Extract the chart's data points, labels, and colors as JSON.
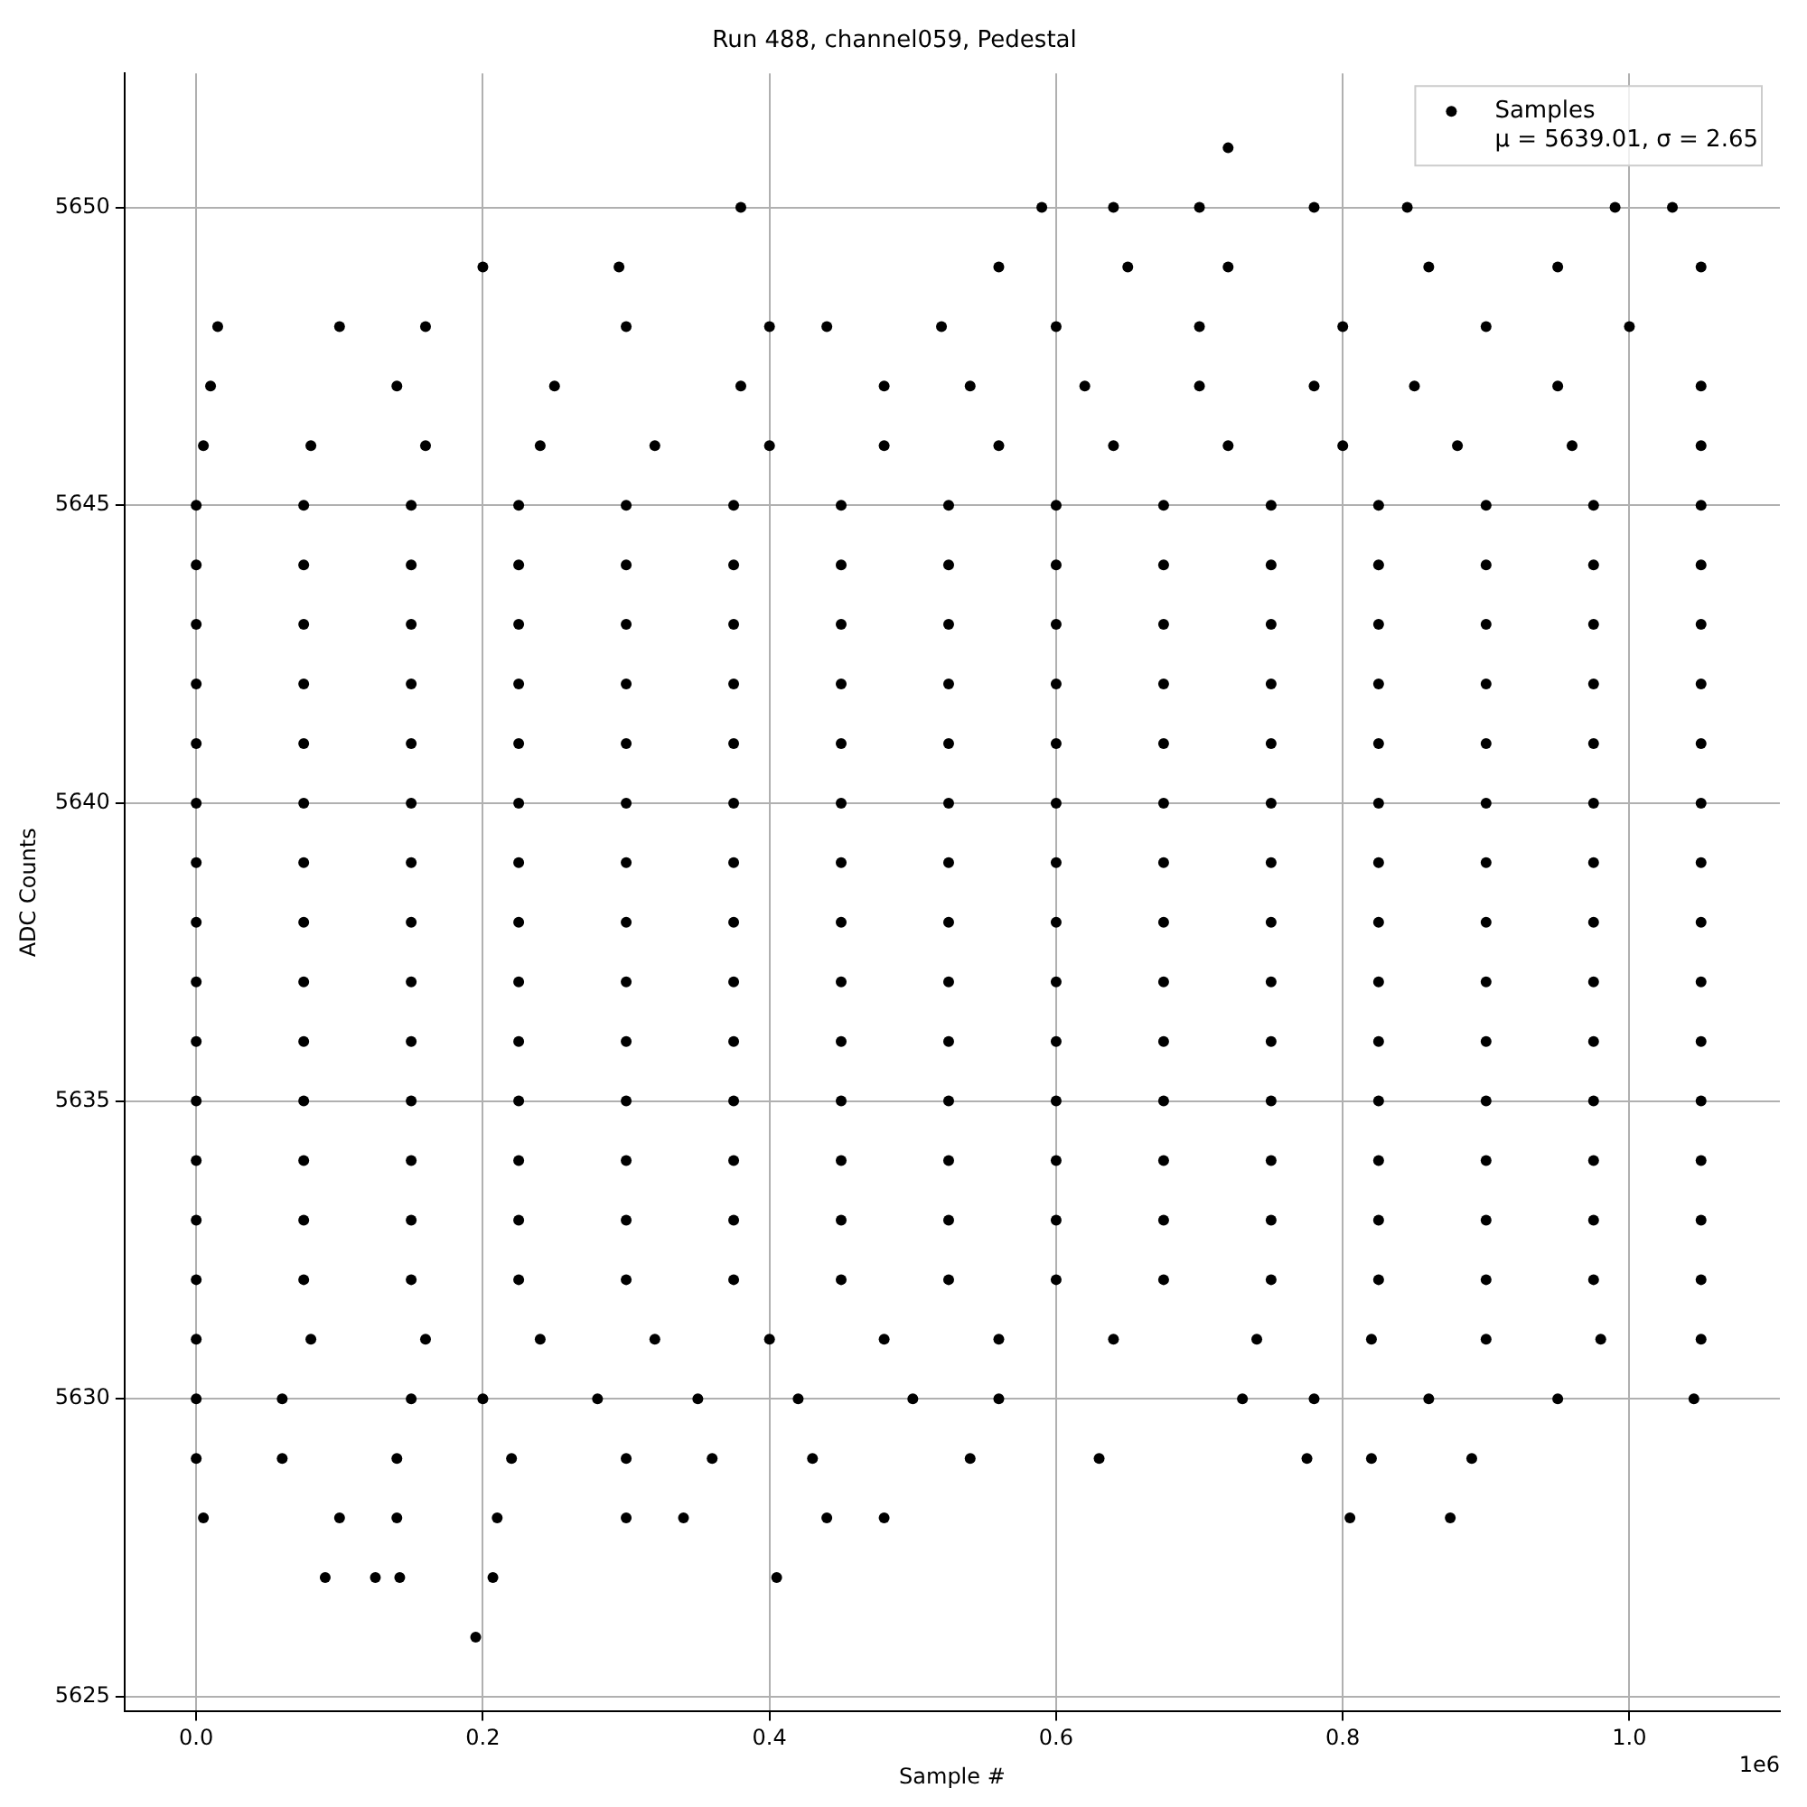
{
  "chart_data": {
    "type": "scatter",
    "title": "Run 488, channel059, Pedestal",
    "xlabel": "Sample #",
    "ylabel": "ADC Counts",
    "annotations": [
      "1e6"
    ],
    "xlim": [
      -0.05,
      1.105
    ],
    "xticks": [
      {
        "value": 0,
        "label": "0.0"
      },
      0.2,
      0.4,
      0.6,
      0.8,
      {
        "value": 1,
        "label": "1.0"
      }
    ],
    "ylim": [
      5624.75,
      5652.25
    ],
    "yticks": [
      5625,
      5630,
      5635,
      5640,
      5645,
      5650
    ],
    "grid": true,
    "legend": "top right",
    "marker": "circle",
    "series": [
      {
        "name": "Samples\nμ = 5639.01, σ = 2.65",
        "color": "#000000",
        "x": [
          0,
          0.075,
          0.15,
          0.225,
          0.3,
          0.375,
          0.45,
          0.525,
          0.6,
          0.675,
          0.75,
          0.825,
          0.9,
          0.975,
          1.05,
          0,
          0.075,
          0.15,
          0.225,
          0.3,
          0.375,
          0.45,
          0.525,
          0.6,
          0.675,
          0.75,
          0.825,
          0.9,
          0.975,
          1.05,
          0,
          0.075,
          0.15,
          0.225,
          0.3,
          0.375,
          0.45,
          0.525,
          0.6,
          0.675,
          0.75,
          0.825,
          0.9,
          0.975,
          1.05,
          0,
          0.075,
          0.15,
          0.225,
          0.3,
          0.375,
          0.45,
          0.525,
          0.6,
          0.675,
          0.75,
          0.825,
          0.9,
          0.975,
          1.05,
          0,
          0.075,
          0.15,
          0.225,
          0.3,
          0.375,
          0.45,
          0.525,
          0.6,
          0.675,
          0.75,
          0.825,
          0.9,
          0.975,
          1.05,
          0,
          0.075,
          0.15,
          0.225,
          0.3,
          0.375,
          0.45,
          0.525,
          0.6,
          0.675,
          0.75,
          0.825,
          0.9,
          0.975,
          1.05,
          0,
          0.075,
          0.15,
          0.225,
          0.3,
          0.375,
          0.45,
          0.525,
          0.6,
          0.675,
          0.75,
          0.825,
          0.9,
          0.975,
          1.05,
          0,
          0.075,
          0.15,
          0.225,
          0.3,
          0.375,
          0.45,
          0.525,
          0.6,
          0.675,
          0.75,
          0.825,
          0.9,
          0.975,
          1.05,
          0,
          0.075,
          0.15,
          0.225,
          0.3,
          0.375,
          0.45,
          0.525,
          0.6,
          0.675,
          0.75,
          0.825,
          0.9,
          0.975,
          1.05,
          0,
          0.075,
          0.15,
          0.225,
          0.3,
          0.375,
          0.45,
          0.525,
          0.6,
          0.675,
          0.75,
          0.825,
          0.9,
          0.975,
          1.05,
          0,
          0.075,
          0.15,
          0.225,
          0.3,
          0.375,
          0.45,
          0.525,
          0.6,
          0.675,
          0.75,
          0.825,
          0.9,
          0.975,
          1.05,
          0,
          0.075,
          0.15,
          0.225,
          0.3,
          0.375,
          0.45,
          0.525,
          0.6,
          0.675,
          0.75,
          0.825,
          0.9,
          0.975,
          1.05,
          0,
          0.075,
          0.15,
          0.225,
          0.3,
          0.375,
          0.45,
          0.525,
          0.6,
          0.675,
          0.75,
          0.825,
          0.9,
          0.975,
          1.05,
          0,
          0.075,
          0.15,
          0.225,
          0.3,
          0.375,
          0.45,
          0.525,
          0.6,
          0.675,
          0.75,
          0.825,
          0.9,
          0.975,
          1.05,
          0.72,
          0.38,
          0.59,
          0.64,
          0.7,
          0.78,
          0.845,
          0.99,
          1.03,
          0.2,
          0.295,
          0.56,
          0.65,
          0.72,
          0.86,
          0.95,
          1.05,
          0.015,
          0.1,
          0.16,
          0.3,
          0.4,
          0.44,
          0.52,
          0.6,
          0.7,
          0.8,
          0.9,
          1.0,
          0.01,
          0.14,
          0.25,
          0.38,
          0.48,
          0.54,
          0.62,
          0.7,
          0.78,
          0.85,
          0.95,
          1.05,
          0.005,
          0.08,
          0.16,
          0.24,
          0.32,
          0.4,
          0.48,
          0.56,
          0.64,
          0.72,
          0.8,
          0.88,
          0.96,
          1.05,
          0,
          0.08,
          0.16,
          0.24,
          0.32,
          0.4,
          0.48,
          0.56,
          0.64,
          0.74,
          0.82,
          0.9,
          0.98,
          1.05,
          0,
          0.06,
          0.15,
          0.2,
          0.28,
          0.35,
          0.42,
          0.5,
          0.56,
          0.73,
          0.78,
          0.86,
          0.95,
          1.045,
          0,
          0.06,
          0.14,
          0.22,
          0.3,
          0.36,
          0.43,
          0.54,
          0.63,
          0.775,
          0.82,
          0.89,
          0.005,
          0.1,
          0.14,
          0.21,
          0.3,
          0.34,
          0.44,
          0.48,
          0.805,
          0.875,
          0.09,
          0.125,
          0.142,
          0.207,
          0.405,
          0.195
        ],
        "values": [
          5632,
          5632,
          5632,
          5632,
          5632,
          5632,
          5632,
          5632,
          5632,
          5632,
          5632,
          5632,
          5632,
          5632,
          5632,
          5633,
          5633,
          5633,
          5633,
          5633,
          5633,
          5633,
          5633,
          5633,
          5633,
          5633,
          5633,
          5633,
          5633,
          5633,
          5634,
          5634,
          5634,
          5634,
          5634,
          5634,
          5634,
          5634,
          5634,
          5634,
          5634,
          5634,
          5634,
          5634,
          5634,
          5635,
          5635,
          5635,
          5635,
          5635,
          5635,
          5635,
          5635,
          5635,
          5635,
          5635,
          5635,
          5635,
          5635,
          5635,
          5636,
          5636,
          5636,
          5636,
          5636,
          5636,
          5636,
          5636,
          5636,
          5636,
          5636,
          5636,
          5636,
          5636,
          5636,
          5637,
          5637,
          5637,
          5637,
          5637,
          5637,
          5637,
          5637,
          5637,
          5637,
          5637,
          5637,
          5637,
          5637,
          5637,
          5638,
          5638,
          5638,
          5638,
          5638,
          5638,
          5638,
          5638,
          5638,
          5638,
          5638,
          5638,
          5638,
          5638,
          5638,
          5639,
          5639,
          5639,
          5639,
          5639,
          5639,
          5639,
          5639,
          5639,
          5639,
          5639,
          5639,
          5639,
          5639,
          5639,
          5640,
          5640,
          5640,
          5640,
          5640,
          5640,
          5640,
          5640,
          5640,
          5640,
          5640,
          5640,
          5640,
          5640,
          5640,
          5641,
          5641,
          5641,
          5641,
          5641,
          5641,
          5641,
          5641,
          5641,
          5641,
          5641,
          5641,
          5641,
          5641,
          5641,
          5642,
          5642,
          5642,
          5642,
          5642,
          5642,
          5642,
          5642,
          5642,
          5642,
          5642,
          5642,
          5642,
          5642,
          5642,
          5643,
          5643,
          5643,
          5643,
          5643,
          5643,
          5643,
          5643,
          5643,
          5643,
          5643,
          5643,
          5643,
          5643,
          5643,
          5644,
          5644,
          5644,
          5644,
          5644,
          5644,
          5644,
          5644,
          5644,
          5644,
          5644,
          5644,
          5644,
          5644,
          5644,
          5645,
          5645,
          5645,
          5645,
          5645,
          5645,
          5645,
          5645,
          5645,
          5645,
          5645,
          5645,
          5645,
          5645,
          5645,
          5651,
          5650,
          5650,
          5650,
          5650,
          5650,
          5650,
          5650,
          5650,
          5649,
          5649,
          5649,
          5649,
          5649,
          5649,
          5649,
          5649,
          5648,
          5648,
          5648,
          5648,
          5648,
          5648,
          5648,
          5648,
          5648,
          5648,
          5648,
          5648,
          5647,
          5647,
          5647,
          5647,
          5647,
          5647,
          5647,
          5647,
          5647,
          5647,
          5647,
          5647,
          5646,
          5646,
          5646,
          5646,
          5646,
          5646,
          5646,
          5646,
          5646,
          5646,
          5646,
          5646,
          5646,
          5646,
          5631,
          5631,
          5631,
          5631,
          5631,
          5631,
          5631,
          5631,
          5631,
          5631,
          5631,
          5631,
          5631,
          5631,
          5630,
          5630,
          5630,
          5630,
          5630,
          5630,
          5630,
          5630,
          5630,
          5630,
          5630,
          5630,
          5630,
          5630,
          5629,
          5629,
          5629,
          5629,
          5629,
          5629,
          5629,
          5629,
          5629,
          5629,
          5629,
          5629,
          5628,
          5628,
          5628,
          5628,
          5628,
          5628,
          5628,
          5628,
          5628,
          5628,
          5627,
          5627,
          5627,
          5627,
          5627,
          5626
        ]
      }
    ]
  }
}
